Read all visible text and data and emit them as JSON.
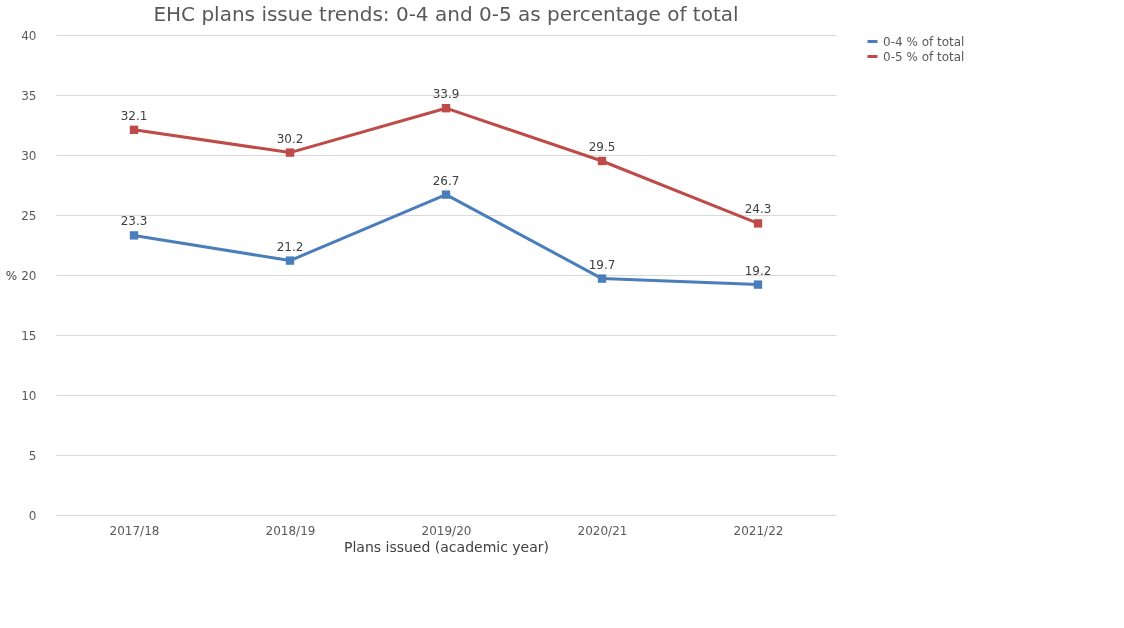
{
  "chart_data": {
    "type": "line",
    "title": "EHC plans issue trends: 0-4 and 0-5 as percentage of total",
    "xlabel": "Plans issued (academic year)",
    "ylabel": "%",
    "categories": [
      "2017/18",
      "2018/19",
      "2019/20",
      "2020/21",
      "2021/22"
    ],
    "series": [
      {
        "name": "0-4 % of total",
        "color": "#4a7ebb",
        "values": [
          23.3,
          21.2,
          26.7,
          19.7,
          19.2
        ]
      },
      {
        "name": "0-5 % of total",
        "color": "#be4b48",
        "values": [
          32.1,
          30.2,
          33.9,
          29.5,
          24.3
        ]
      }
    ],
    "ylim": [
      0,
      40
    ],
    "yticks": [
      0,
      5,
      10,
      15,
      20,
      25,
      30,
      35,
      40
    ],
    "grid": "y",
    "legend": "right",
    "marker": "square",
    "line_style": "solid",
    "data_labels": true
  }
}
